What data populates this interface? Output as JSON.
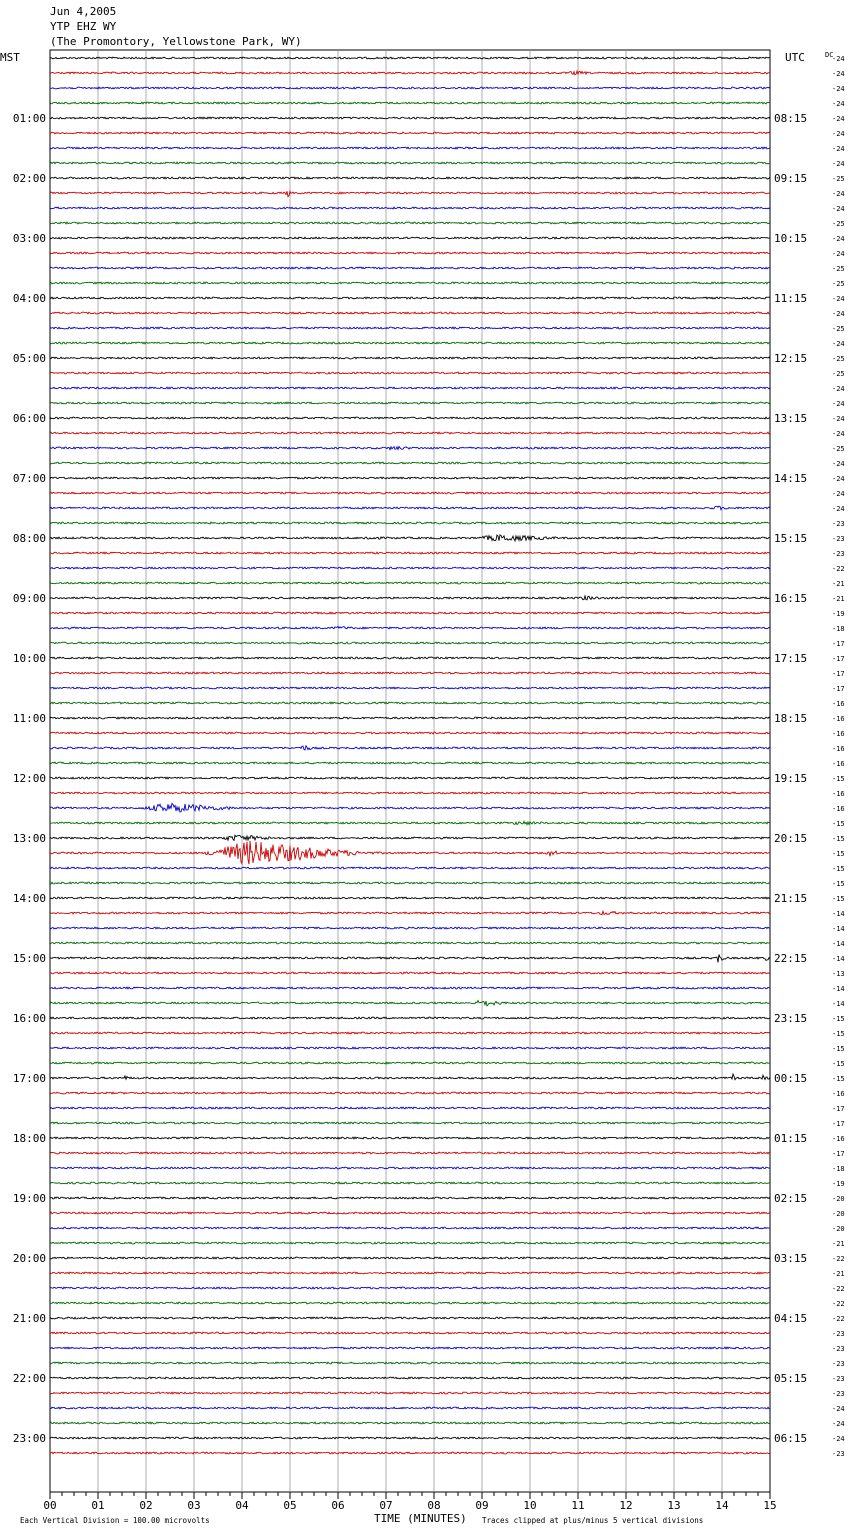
{
  "header": {
    "line1": "Jun 4,2005",
    "line2": "YTP EHZ WY",
    "line3": "(The Promontory, Yellowstone Park, WY)"
  },
  "chart_data": {
    "type": "line",
    "left_timezone": "MST",
    "right_timezone": "UTC",
    "dc_label": "DC",
    "xlabel": "TIME (MINUTES)",
    "x_ticks": [
      "00",
      "01",
      "02",
      "03",
      "04",
      "05",
      "06",
      "07",
      "08",
      "09",
      "10",
      "11",
      "12",
      "13",
      "14",
      "15"
    ],
    "x_range": [
      0,
      15
    ],
    "footer_left": "Each Vertical Division =  100.00 microvolts",
    "footer_right": "Traces clipped at plus/minus 5 vertical divisions",
    "trace_colors": [
      "#000000",
      "#cc0000",
      "#0000cc",
      "#006600"
    ],
    "grid": true,
    "left_hour_labels": [
      "",
      "01:00",
      "02:00",
      "03:00",
      "04:00",
      "05:00",
      "06:00",
      "07:00",
      "08:00",
      "09:00",
      "10:00",
      "11:00",
      "12:00",
      "13:00",
      "14:00",
      "15:00",
      "16:00",
      "17:00",
      "18:00",
      "19:00",
      "20:00",
      "21:00",
      "22:00",
      "23:00"
    ],
    "right_hour_labels": [
      "",
      "08:15",
      "09:15",
      "10:15",
      "11:15",
      "12:15",
      "13:15",
      "14:15",
      "15:15",
      "16:15",
      "17:15",
      "18:15",
      "19:15",
      "20:15",
      "21:15",
      "22:15",
      "23:15",
      "00:15",
      "01:15",
      "02:15",
      "03:15",
      "04:15",
      "05:15",
      "06:15"
    ],
    "dc_offsets": [
      -24,
      -24,
      -24,
      -24,
      -24,
      -24,
      -24,
      -24,
      -25,
      -24,
      -24,
      -25,
      -24,
      -24,
      -25,
      -25,
      -24,
      -24,
      -25,
      -24,
      -25,
      -25,
      -24,
      -24,
      -24,
      -24,
      -25,
      -24,
      -24,
      -24,
      -24,
      -23,
      -23,
      -23,
      -22,
      -21,
      -21,
      -19,
      -18,
      -17,
      -17,
      -17,
      -17,
      -16,
      -16,
      -16,
      -16,
      -16,
      -15,
      -16,
      -16,
      -15,
      -15,
      -15,
      -15,
      -15,
      -15,
      -14,
      -14,
      -14,
      -14,
      -13,
      -14,
      -14,
      -15,
      -15,
      -15,
      -15,
      -15,
      -16,
      -17,
      -17,
      -16,
      -17,
      -18,
      -19,
      -20,
      -20,
      -20,
      -21,
      -22,
      -21,
      -22,
      -22,
      -22,
      -23,
      -23,
      -23,
      -23,
      -23,
      -24,
      -24,
      -24,
      -23
    ],
    "events": [
      {
        "row": 1,
        "start_min": 10.8,
        "end_min": 11.3,
        "amplitude": 1.5
      },
      {
        "row": 9,
        "start_min": 4.9,
        "end_min": 5.05,
        "amplitude": 4.5
      },
      {
        "row": 26,
        "start_min": 7.0,
        "end_min": 7.6,
        "amplitude": 1.5
      },
      {
        "row": 30,
        "start_min": 13.8,
        "end_min": 14.2,
        "amplitude": 1.5
      },
      {
        "row": 32,
        "start_min": 6.5,
        "end_min": 7.0,
        "amplitude": 1.5
      },
      {
        "row": 32,
        "start_min": 8.9,
        "end_min": 10.8,
        "amplitude": 3.0
      },
      {
        "row": 36,
        "start_min": 11.0,
        "end_min": 11.6,
        "amplitude": 1.5
      },
      {
        "row": 38,
        "start_min": 5.9,
        "end_min": 6.4,
        "amplitude": 1.2
      },
      {
        "row": 46,
        "start_min": 5.2,
        "end_min": 5.5,
        "amplitude": 3.0
      },
      {
        "row": 50,
        "start_min": 1.9,
        "end_min": 4.2,
        "amplitude": 4.5
      },
      {
        "row": 51,
        "start_min": 9.6,
        "end_min": 10.4,
        "amplitude": 1.5
      },
      {
        "row": 52,
        "start_min": 3.5,
        "end_min": 5.0,
        "amplitude": 2.5
      },
      {
        "row": 53,
        "start_min": 3.2,
        "end_min": 7.0,
        "amplitude": 12.0
      },
      {
        "row": 53,
        "start_min": 10.3,
        "end_min": 10.7,
        "amplitude": 3.0
      },
      {
        "row": 57,
        "start_min": 11.4,
        "end_min": 12.0,
        "amplitude": 1.5
      },
      {
        "row": 60,
        "start_min": 13.85,
        "end_min": 14.1,
        "amplitude": 5.0
      },
      {
        "row": 60,
        "start_min": 14.9,
        "end_min": 15.0,
        "amplitude": 3.0
      },
      {
        "row": 63,
        "start_min": 8.8,
        "end_min": 9.6,
        "amplitude": 3.0
      },
      {
        "row": 68,
        "start_min": 14.2,
        "end_min": 14.35,
        "amplitude": 4.0
      },
      {
        "row": 68,
        "start_min": 1.5,
        "end_min": 1.7,
        "amplitude": 1.5
      },
      {
        "row": 68,
        "start_min": 14.8,
        "end_min": 15.0,
        "amplitude": 2.0
      }
    ]
  }
}
